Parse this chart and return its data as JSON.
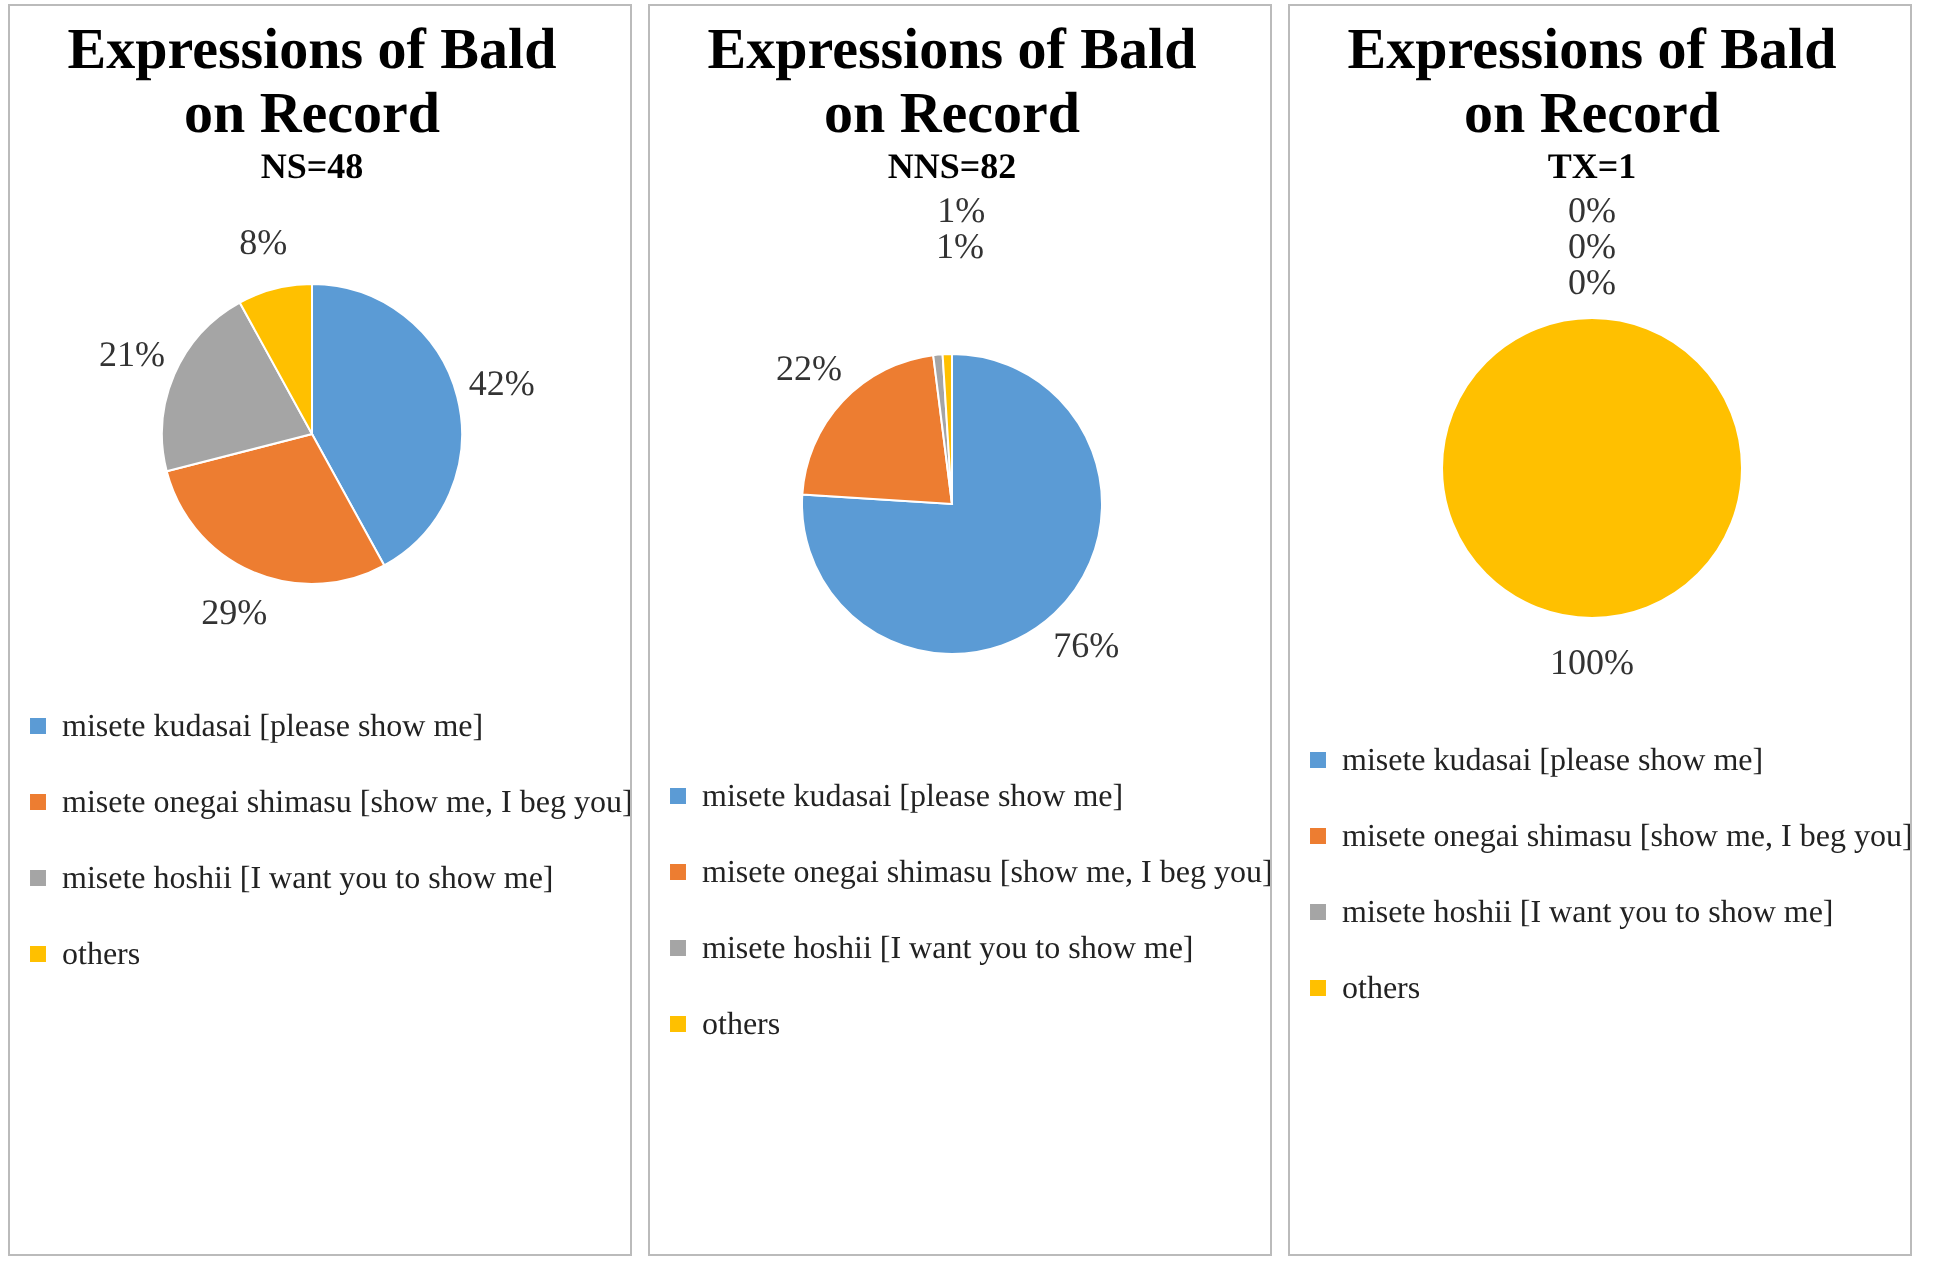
{
  "chart_data": [
    {
      "type": "pie",
      "title": "Expressions of Bald on Record",
      "subtitle": "NS=48",
      "categories": [
        "misete kudasai [please show me]",
        "misete onegai shimasu [show me, I beg you]",
        "misete hoshii [I want you to show me]",
        "others"
      ],
      "values": [
        42,
        29,
        21,
        8
      ],
      "value_labels": [
        "42%",
        "29%",
        "21%",
        "8%"
      ],
      "colors": [
        "#5b9bd5",
        "#ed7d31",
        "#a5a5a5",
        "#ffc000"
      ],
      "legend": "bottom"
    },
    {
      "type": "pie",
      "title": "Expressions of Bald on Record",
      "subtitle": "NNS=82",
      "categories": [
        "misete kudasai [please show me]",
        "misete onegai shimasu [show me, I beg you]",
        "misete hoshii [I want you to show me]",
        "others"
      ],
      "values": [
        76,
        22,
        1,
        1
      ],
      "value_labels": [
        "76%",
        "22%",
        "1%",
        "1%"
      ],
      "colors": [
        "#5b9bd5",
        "#ed7d31",
        "#a5a5a5",
        "#ffc000"
      ],
      "legend": "bottom"
    },
    {
      "type": "pie",
      "title": "Expressions of Bald on Record",
      "subtitle": "TX=1",
      "categories": [
        "misete kudasai [please show me]",
        "misete onegai shimasu [show me, I beg you]",
        "misete hoshii [I want you to show me]",
        "others"
      ],
      "values": [
        0,
        0,
        0,
        100
      ],
      "value_labels": [
        "0%",
        "0%",
        "0%",
        "100%"
      ],
      "colors": [
        "#5b9bd5",
        "#ed7d31",
        "#a5a5a5",
        "#ffc000"
      ],
      "legend": "bottom"
    }
  ]
}
